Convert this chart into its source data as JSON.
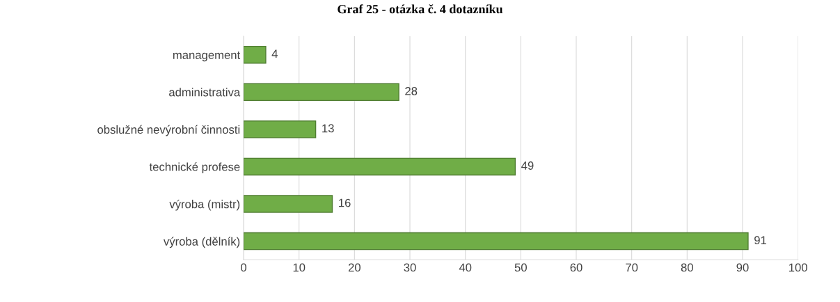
{
  "chart_data": {
    "type": "bar",
    "orientation": "horizontal",
    "title": "Graf 25 - otázka č. 4 dotazníku",
    "categories": [
      "management",
      "administrativa",
      "obslužné nevýrobní činnosti",
      "technické profese",
      "výroba (mistr)",
      "výroba (dělník)"
    ],
    "values": [
      4,
      28,
      13,
      49,
      16,
      91
    ],
    "color": "#70ad47",
    "xlim": [
      0,
      100
    ],
    "xticks": [
      0,
      10,
      20,
      30,
      40,
      50,
      60,
      70,
      80,
      90,
      100
    ],
    "grid": "x",
    "data_labels": true
  }
}
